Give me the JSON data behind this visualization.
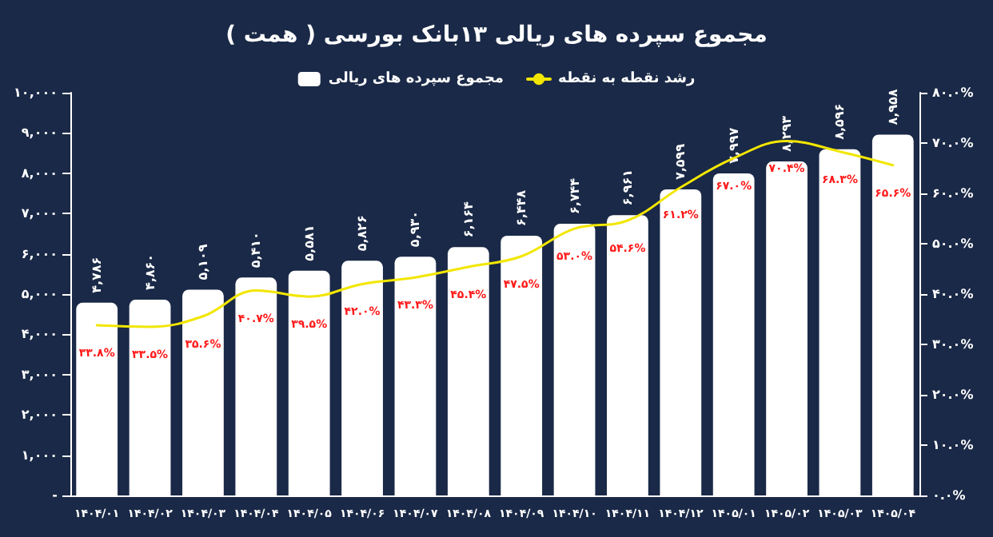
{
  "chart_data": {
    "type": "bar",
    "title": "مجموع سپرده های ریالی ۱۳بانک بورسی ( همت )",
    "categories": [
      "۱۴۰۴/۰۱",
      "۱۴۰۴/۰۲",
      "۱۴۰۴/۰۳",
      "۱۴۰۴/۰۴",
      "۱۴۰۴/۰۵",
      "۱۴۰۴/۰۶",
      "۱۴۰۴/۰۷",
      "۱۴۰۴/۰۸",
      "۱۴۰۴/۰۹",
      "۱۴۰۴/۱۰",
      "۱۴۰۴/۱۱",
      "۱۴۰۴/۱۲",
      "۱۴۰۵/۰۱",
      "۱۴۰۵/۰۲",
      "۱۴۰۵/۰۳",
      "۱۴۰۵/۰۴"
    ],
    "series": [
      {
        "name": "مجموع سپرده های ریالی",
        "color": "#ffffff",
        "values": [
          4786,
          4860,
          5109,
          5410,
          5581,
          5826,
          5930,
          6164,
          6448,
          6744,
          6961,
          7599,
          7997,
          8293,
          8596,
          8958
        ],
        "value_labels": [
          "۴,۷۸۶",
          "۴,۸۶۰",
          "۵,۱۰۹",
          "۵,۴۱۰",
          "۵,۵۸۱",
          "۵,۸۲۶",
          "۵,۹۳۰",
          "۶,۱۶۴",
          "۶,۴۴۸",
          "۶,۷۴۴",
          "۶,۹۶۱",
          "۷,۵۹۹",
          "۷,۹۹۷",
          "۸,۲۹۳",
          "۸,۵۹۶",
          "۸,۹۵۸"
        ]
      },
      {
        "name": "رشد نقطه به نقطه",
        "type": "line",
        "axis": "y2",
        "color": "#f2e600",
        "values": [
          33.8,
          33.5,
          35.6,
          40.7,
          39.5,
          42.0,
          43.3,
          45.4,
          47.5,
          53.0,
          54.6,
          61.2,
          67.0,
          70.4,
          68.3,
          65.6
        ],
        "value_labels": [
          "۳۳.۸%",
          "۳۳.۵%",
          "۳۵.۶%",
          "۴۰.۷%",
          "۳۹.۵%",
          "۴۲.۰%",
          "۴۳.۳%",
          "۴۵.۴%",
          "۴۷.۵%",
          "۵۳.۰%",
          "۵۴.۶%",
          "۶۱.۲%",
          "۶۷.۰%",
          "۷۰.۴%",
          "۶۸.۳%",
          "۶۵.۶%"
        ]
      }
    ],
    "ylim": [
      0,
      10000
    ],
    "yticks": [
      {
        "value": 0,
        "label": "-"
      },
      {
        "value": 1000,
        "label": "۱,۰۰۰"
      },
      {
        "value": 2000,
        "label": "۲,۰۰۰"
      },
      {
        "value": 3000,
        "label": "۳,۰۰۰"
      },
      {
        "value": 4000,
        "label": "۴,۰۰۰"
      },
      {
        "value": 5000,
        "label": "۵,۰۰۰"
      },
      {
        "value": 6000,
        "label": "۶,۰۰۰"
      },
      {
        "value": 7000,
        "label": "۷,۰۰۰"
      },
      {
        "value": 8000,
        "label": "۸,۰۰۰"
      },
      {
        "value": 9000,
        "label": "۹,۰۰۰"
      },
      {
        "value": 10000,
        "label": "۱۰,۰۰۰"
      }
    ],
    "y2lim": [
      0,
      80
    ],
    "y2ticks": [
      {
        "value": 0,
        "label": "۰.۰%"
      },
      {
        "value": 10,
        "label": "۱۰.۰%"
      },
      {
        "value": 20,
        "label": "۲۰.۰%"
      },
      {
        "value": 30,
        "label": "۳۰.۰%"
      },
      {
        "value": 40,
        "label": "۴۰.۰%"
      },
      {
        "value": 50,
        "label": "۵۰.۰%"
      },
      {
        "value": 60,
        "label": "۶۰.۰%"
      },
      {
        "value": 70,
        "label": "۷۰.۰%"
      },
      {
        "value": 80,
        "label": "۸۰.۰%"
      }
    ],
    "grid": false,
    "legend": "top",
    "marker": "none",
    "line_style": "solid"
  }
}
